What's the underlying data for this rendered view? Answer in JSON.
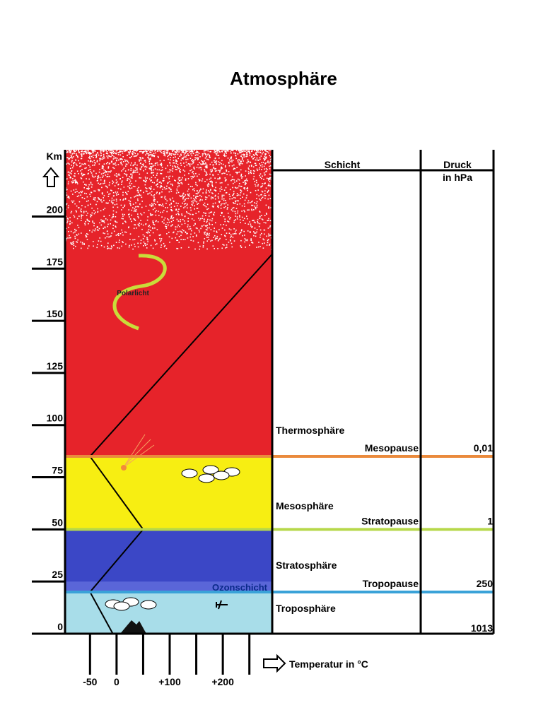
{
  "title": "Atmosphäre",
  "altitude_axis": {
    "label": "Km",
    "range": [
      0,
      232
    ],
    "ticks": [
      0,
      25,
      50,
      75,
      100,
      125,
      150,
      175,
      200
    ]
  },
  "temperature_axis": {
    "label": "Temperatur in °C",
    "range": [
      -97,
      293
    ],
    "ticks": [
      -50,
      0,
      50,
      100,
      150,
      200,
      250
    ],
    "labels": [
      -50,
      0,
      {
        "value": 100,
        "label": "+100"
      },
      {
        "value": 200,
        "label": "+200"
      }
    ]
  },
  "temperature_profile": {
    "km": [
      0,
      20,
      50,
      85,
      182
    ],
    "celsius": [
      -7,
      -50,
      50,
      -50,
      293
    ]
  },
  "layers": [
    {
      "name": "Troposphäre",
      "km": [
        0,
        20
      ],
      "color": "#a8dde9"
    },
    {
      "name": "Stratosphäre",
      "km": [
        20,
        50
      ],
      "color": "#3b47c6"
    },
    {
      "name": "Mesosphäre",
      "km": [
        50,
        85
      ],
      "color": "#f7ee12"
    },
    {
      "name": "Thermosphäre",
      "km": [
        85,
        232
      ],
      "color": "#e6232a"
    }
  ],
  "ozone_layer": {
    "label": "Ozonschicht",
    "km": [
      20,
      25
    ],
    "color": "#5a66d8"
  },
  "boundaries": [
    {
      "name": "Mesopause",
      "km": 85,
      "pressure": "0,01",
      "color": "#ea8a3c"
    },
    {
      "name": "Stratopause",
      "km": 50,
      "pressure": "1",
      "color": "#b6d84a"
    },
    {
      "name": "Tropopause",
      "km": 20,
      "pressure": "250",
      "color": "#3aa2d8"
    }
  ],
  "surface_pressure": "1013",
  "table": {
    "layer_header": "Schicht",
    "pressure_header": [
      "Druck",
      "in hPa"
    ]
  },
  "aurora_label": "Polarlicht"
}
